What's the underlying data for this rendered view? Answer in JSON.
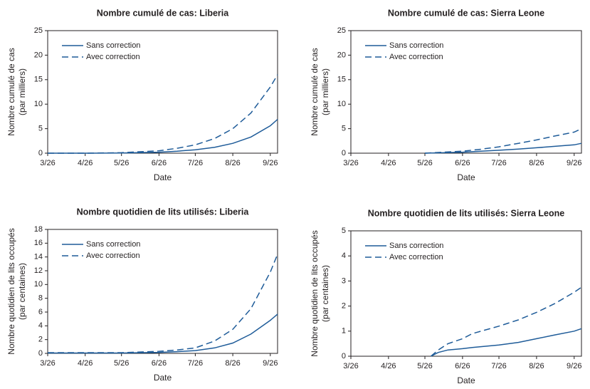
{
  "chart_data": [
    {
      "type": "line",
      "title": "Nombre cumulé de cas: Liberia",
      "xlabel": "Date",
      "ylabel": [
        "Nombre cumulé de cas",
        "(par milliers)"
      ],
      "x": [
        0,
        31,
        61,
        92,
        107,
        122,
        138,
        153,
        168,
        184,
        190
      ],
      "xlim": [
        0,
        190
      ],
      "xticks": [
        {
          "value": 0,
          "label": "3/26"
        },
        {
          "value": 31,
          "label": "4/26"
        },
        {
          "value": 61,
          "label": "5/26"
        },
        {
          "value": 92,
          "label": "6/26"
        },
        {
          "value": 122,
          "label": "7/26"
        },
        {
          "value": 153,
          "label": "8/26"
        },
        {
          "value": 184,
          "label": "9/26"
        }
      ],
      "ylim": [
        0,
        25
      ],
      "yticks": [
        0,
        5,
        10,
        15,
        20,
        25
      ],
      "grid": false,
      "legend": "upper-left",
      "series": [
        {
          "name": "Sans correction",
          "color": "#1f5c99",
          "dashed": false,
          "values": [
            0,
            0,
            0.05,
            0.2,
            0.4,
            0.7,
            1.2,
            2.0,
            3.3,
            5.6,
            6.9
          ]
        },
        {
          "name": "Avec correction",
          "color": "#1f5c99",
          "dashed": true,
          "values": [
            0,
            0,
            0.1,
            0.5,
            1.0,
            1.7,
            3.0,
            5.0,
            8.2,
            13.5,
            16
          ]
        }
      ]
    },
    {
      "type": "line",
      "title": "Nombre cumulé de cas: Sierra Leone",
      "xlabel": "Date",
      "ylabel": [
        "Nombre cumulé de cas",
        "(par milliers)"
      ],
      "x": [
        0,
        31,
        61,
        92,
        107,
        122,
        138,
        153,
        168,
        184,
        190
      ],
      "xlim": [
        0,
        190
      ],
      "xticks": [
        {
          "value": 0,
          "label": "3/26"
        },
        {
          "value": 31,
          "label": "4/26"
        },
        {
          "value": 61,
          "label": "5/26"
        },
        {
          "value": 92,
          "label": "6/26"
        },
        {
          "value": 122,
          "label": "7/26"
        },
        {
          "value": 153,
          "label": "8/26"
        },
        {
          "value": 184,
          "label": "9/26"
        }
      ],
      "ylim": [
        0,
        25
      ],
      "yticks": [
        0,
        5,
        10,
        15,
        20,
        25
      ],
      "grid": false,
      "legend": "upper-left",
      "series": [
        {
          "name": "Sans correction",
          "color": "#1f5c99",
          "dashed": false,
          "values": [
            null,
            null,
            0,
            0.2,
            0.4,
            0.6,
            0.85,
            1.1,
            1.4,
            1.7,
            2.0
          ]
        },
        {
          "name": "Avec correction",
          "color": "#1f5c99",
          "dashed": true,
          "values": [
            null,
            null,
            0,
            0.4,
            0.8,
            1.3,
            2.0,
            2.7,
            3.5,
            4.3,
            5.0
          ]
        }
      ]
    },
    {
      "type": "line",
      "title": "Nombre quotidien de lits utilisés: Liberia",
      "xlabel": "Date",
      "ylabel": [
        "Nombre quotidien de lits occupés",
        "(par centaines)"
      ],
      "x": [
        0,
        31,
        61,
        92,
        107,
        122,
        138,
        153,
        168,
        184,
        190
      ],
      "xlim": [
        0,
        190
      ],
      "xticks": [
        {
          "value": 0,
          "label": "3/26"
        },
        {
          "value": 31,
          "label": "4/26"
        },
        {
          "value": 61,
          "label": "5/26"
        },
        {
          "value": 92,
          "label": "6/26"
        },
        {
          "value": 122,
          "label": "7/26"
        },
        {
          "value": 153,
          "label": "8/26"
        },
        {
          "value": 184,
          "label": "9/26"
        }
      ],
      "ylim": [
        0,
        18
      ],
      "yticks": [
        0,
        2,
        4,
        6,
        8,
        10,
        12,
        14,
        16,
        18
      ],
      "grid": false,
      "legend": "upper-left",
      "series": [
        {
          "name": "Sans correction",
          "color": "#1f5c99",
          "dashed": false,
          "values": [
            0.05,
            0.05,
            0.05,
            0.15,
            0.25,
            0.4,
            0.8,
            1.5,
            2.8,
            4.8,
            5.7
          ]
        },
        {
          "name": "Avec correction",
          "color": "#1f5c99",
          "dashed": true,
          "values": [
            0.1,
            0.1,
            0.1,
            0.3,
            0.5,
            0.8,
            1.8,
            3.5,
            6.5,
            11.8,
            14.4
          ]
        }
      ]
    },
    {
      "type": "line",
      "title": "Nombre quotidien de lits utilisés: Sierra Leone",
      "xlabel": "Date",
      "ylabel": [
        "Nombre quotidien de lits occupés",
        "(par centaines)"
      ],
      "x": [
        0,
        31,
        61,
        66,
        72,
        80,
        92,
        100,
        122,
        138,
        153,
        168,
        184,
        190
      ],
      "xlim": [
        0,
        190
      ],
      "xticks": [
        {
          "value": 0,
          "label": "3/26"
        },
        {
          "value": 31,
          "label": "4/26"
        },
        {
          "value": 61,
          "label": "5/26"
        },
        {
          "value": 92,
          "label": "6/26"
        },
        {
          "value": 122,
          "label": "7/26"
        },
        {
          "value": 153,
          "label": "8/26"
        },
        {
          "value": 184,
          "label": "9/26"
        }
      ],
      "ylim": [
        0,
        5
      ],
      "yticks": [
        0,
        1,
        2,
        3,
        4,
        5
      ],
      "grid": false,
      "legend": "upper-left",
      "series": [
        {
          "name": "Sans correction",
          "color": "#1f5c99",
          "dashed": false,
          "values": [
            null,
            null,
            null,
            0,
            0.15,
            0.25,
            0.3,
            0.35,
            0.45,
            0.55,
            0.7,
            0.85,
            1.0,
            1.1
          ]
        },
        {
          "name": "Avec correction",
          "color": "#1f5c99",
          "dashed": true,
          "values": [
            null,
            null,
            null,
            0,
            0.25,
            0.5,
            0.7,
            0.9,
            1.2,
            1.45,
            1.75,
            2.1,
            2.55,
            2.75
          ]
        }
      ]
    }
  ]
}
